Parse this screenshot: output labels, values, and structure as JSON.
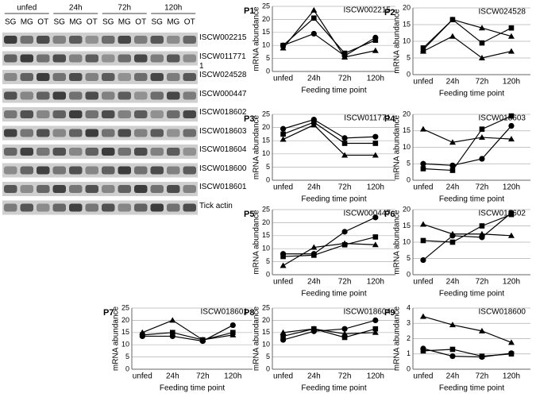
{
  "gel": {
    "time_points": [
      "unfed",
      "24h",
      "72h",
      "120h"
    ],
    "tissues": [
      "SG",
      "MG",
      "OT"
    ],
    "genes": [
      "ISCW002215",
      "ISCW0117711",
      "ISCW024528",
      "ISCW000447",
      "ISCW018602",
      "ISCW018603",
      "ISCW018604",
      "ISCW018600",
      "ISCW018601",
      "Tick actin"
    ]
  },
  "chart_data": [
    {
      "type": "line",
      "panel": "P1",
      "annotation": "ISCW002215",
      "ylabel": "mRNA abundance",
      "xlabel": "Feeding time point",
      "categories": [
        "unfed",
        "24h",
        "72h",
        "120h"
      ],
      "ylim": [
        0,
        25
      ],
      "yticks": [
        0,
        5,
        10,
        15,
        20,
        25
      ],
      "grid": true,
      "series": [
        {
          "marker": "circle",
          "color": "#000000",
          "values": [
            10,
            14.5,
            6,
            13
          ]
        },
        {
          "marker": "square",
          "color": "#000000",
          "values": [
            10,
            20.5,
            7,
            12
          ]
        },
        {
          "marker": "triangle",
          "color": "#000000",
          "values": [
            9,
            23.5,
            5.5,
            8
          ]
        }
      ]
    },
    {
      "type": "line",
      "panel": "P2",
      "annotation": "ISCW024528",
      "ylabel": "mRNA abundance",
      "xlabel": "Feeding time point",
      "categories": [
        "unfed",
        "24h",
        "72h",
        "120h"
      ],
      "ylim": [
        0,
        20
      ],
      "yticks": [
        0,
        5,
        10,
        15,
        20
      ],
      "grid": true,
      "series": [
        {
          "marker": "square",
          "color": "#000000",
          "values": [
            8,
            16.5,
            9.5,
            14
          ]
        },
        {
          "marker": "triangle",
          "color": "#000000",
          "values": [
            7.5,
            16.5,
            14,
            11.5
          ]
        },
        {
          "marker": "triangle",
          "color": "#000000",
          "values": [
            7,
            11.5,
            5,
            7
          ]
        }
      ]
    },
    {
      "type": "line",
      "panel": "P3",
      "annotation": "ISCW011771",
      "ylabel": "mRNA abundance",
      "xlabel": "Feeding time point",
      "categories": [
        "unfed",
        "24h",
        "72h",
        "120h"
      ],
      "ylim": [
        0,
        25
      ],
      "yticks": [
        0,
        5,
        10,
        15,
        20,
        25
      ],
      "grid": true,
      "series": [
        {
          "marker": "circle",
          "color": "#000000",
          "values": [
            19.5,
            23,
            16,
            16.5
          ]
        },
        {
          "marker": "square",
          "color": "#000000",
          "values": [
            17.5,
            22,
            14,
            14
          ]
        },
        {
          "marker": "triangle",
          "color": "#000000",
          "values": [
            15.5,
            21,
            9.5,
            9.5
          ]
        }
      ]
    },
    {
      "type": "line",
      "panel": "P4",
      "annotation": "ISCW018603",
      "ylabel": "mRNA abundance",
      "xlabel": "Feeding time point",
      "categories": [
        "unfed",
        "24h",
        "72h",
        "120h"
      ],
      "ylim": [
        0,
        20
      ],
      "yticks": [
        0,
        5,
        10,
        15,
        20
      ],
      "grid": true,
      "series": [
        {
          "marker": "triangle",
          "color": "#000000",
          "values": [
            15.5,
            11.5,
            13,
            12.5
          ]
        },
        {
          "marker": "square",
          "color": "#000000",
          "values": [
            3.5,
            3,
            15.5,
            19.5
          ]
        },
        {
          "marker": "circle",
          "color": "#000000",
          "values": [
            5,
            4.5,
            6.5,
            16.5
          ]
        }
      ]
    },
    {
      "type": "line",
      "panel": "P5",
      "annotation": "ISCW000447",
      "ylabel": "mRNA abundance",
      "xlabel": "Feeding time point",
      "categories": [
        "unfed",
        "24h",
        "72h",
        "120h"
      ],
      "ylim": [
        0,
        25
      ],
      "yticks": [
        0,
        5,
        10,
        15,
        20,
        25
      ],
      "grid": true,
      "series": [
        {
          "marker": "circle",
          "color": "#000000",
          "values": [
            8,
            8,
            16.5,
            22
          ]
        },
        {
          "marker": "square",
          "color": "#000000",
          "values": [
            7,
            7.5,
            11.5,
            14.5
          ]
        },
        {
          "marker": "triangle",
          "color": "#000000",
          "values": [
            3.5,
            10.5,
            12,
            11.5
          ]
        }
      ]
    },
    {
      "type": "line",
      "panel": "P6",
      "annotation": "ISCW018602",
      "ylabel": "mRNA abundance",
      "xlabel": "Feeding time point",
      "categories": [
        "unfed",
        "24h",
        "72h",
        "120h"
      ],
      "ylim": [
        0,
        20
      ],
      "yticks": [
        0,
        5,
        10,
        15,
        20
      ],
      "grid": true,
      "series": [
        {
          "marker": "triangle",
          "color": "#000000",
          "values": [
            15.5,
            12.5,
            12.5,
            12
          ]
        },
        {
          "marker": "square",
          "color": "#000000",
          "values": [
            10.5,
            10,
            15,
            18.5
          ]
        },
        {
          "marker": "circle",
          "color": "#000000",
          "values": [
            4.5,
            12,
            11.5,
            19
          ]
        }
      ]
    },
    {
      "type": "line",
      "panel": "P7",
      "annotation": "ISCW018601",
      "ylabel": "mRNA abundance",
      "xlabel": "Feeding time point",
      "categories": [
        "unfed",
        "24h",
        "72h",
        "120h"
      ],
      "ylim": [
        0,
        25
      ],
      "yticks": [
        0,
        5,
        10,
        15,
        20,
        25
      ],
      "grid": true,
      "series": [
        {
          "marker": "triangle",
          "color": "#000000",
          "values": [
            15,
            20,
            12,
            14
          ]
        },
        {
          "marker": "square",
          "color": "#000000",
          "values": [
            14,
            15,
            12,
            15
          ]
        },
        {
          "marker": "circle",
          "color": "#000000",
          "values": [
            13.5,
            13.5,
            11.5,
            18
          ]
        }
      ]
    },
    {
      "type": "line",
      "panel": "P8",
      "annotation": "ISCW018604",
      "ylabel": "mRNA abundance",
      "xlabel": "Feeding time point",
      "categories": [
        "unfed",
        "24h",
        "72h",
        "120h"
      ],
      "ylim": [
        0,
        25
      ],
      "yticks": [
        0,
        5,
        10,
        15,
        20,
        25
      ],
      "grid": true,
      "series": [
        {
          "marker": "triangle",
          "color": "#000000",
          "values": [
            15,
            16.5,
            14.5,
            15
          ]
        },
        {
          "marker": "square",
          "color": "#000000",
          "values": [
            13.5,
            16.5,
            13,
            16.5
          ]
        },
        {
          "marker": "circle",
          "color": "#000000",
          "values": [
            12,
            15.5,
            16.5,
            20
          ]
        }
      ]
    },
    {
      "type": "line",
      "panel": "P9",
      "annotation": "ISCW018600",
      "ylabel": "mRNA abundance",
      "xlabel": "Feeding time point",
      "categories": [
        "unfed",
        "24h",
        "72h",
        "120h"
      ],
      "ylim": [
        0,
        4
      ],
      "yticks": [
        0,
        1,
        2,
        3,
        4
      ],
      "grid": true,
      "series": [
        {
          "marker": "triangle",
          "color": "#000000",
          "values": [
            3.45,
            2.9,
            2.5,
            1.75
          ]
        },
        {
          "marker": "square",
          "color": "#000000",
          "values": [
            1.2,
            1.3,
            0.85,
            1.0
          ]
        },
        {
          "marker": "circle",
          "color": "#000000",
          "values": [
            1.35,
            0.85,
            0.8,
            1.05
          ]
        }
      ]
    }
  ]
}
